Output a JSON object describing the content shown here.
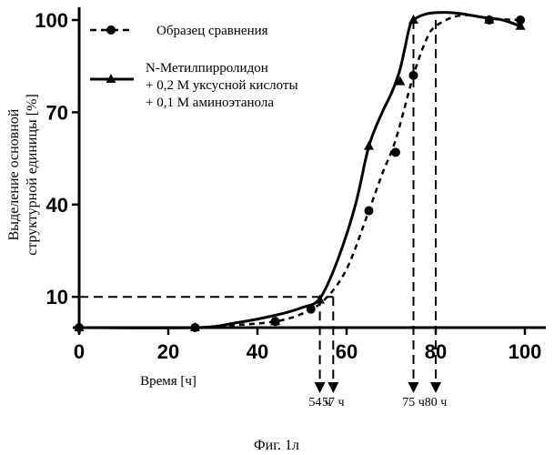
{
  "chart_data": {
    "type": "line",
    "title": "",
    "xlabel": "Время [ч]",
    "ylabel": [
      "Выделение основной",
      "структурной единицы [%]"
    ],
    "xlim": [
      0,
      100
    ],
    "ylim": [
      0,
      100
    ],
    "grid": false,
    "legend_position": "top-left",
    "x_ticks": [
      0,
      20,
      40,
      60,
      80,
      100
    ],
    "x_tick_labels": [
      "0",
      "20",
      "40",
      "60",
      "80",
      "100"
    ],
    "y_ticks": [
      10,
      40,
      70,
      100
    ],
    "y_tick_labels": [
      "10",
      "40",
      "70",
      "100"
    ],
    "series": [
      {
        "name": "Образец сравнения",
        "style": "dashed",
        "marker": "circle",
        "x": [
          0,
          26,
          44,
          52,
          65,
          71,
          75,
          92,
          99
        ],
        "y": [
          0,
          0,
          2,
          6,
          38,
          57,
          82,
          100,
          100
        ]
      },
      {
        "name_lines": [
          "N-Метилпирролидон",
          "+ 0,2 М уксусной кислоты",
          "+ 0,1 М аминоэтанола"
        ],
        "style": "solid",
        "marker": "triangle",
        "x": [
          0,
          26,
          44,
          54,
          65,
          72,
          75,
          92,
          99
        ],
        "y": [
          0,
          0,
          2,
          9,
          59,
          80,
          100,
          100,
          98
        ]
      }
    ],
    "curves": [
      {
        "series": 0,
        "x": [
          0,
          26,
          35,
          44,
          50,
          55,
          60,
          65,
          68,
          71,
          75,
          78,
          80,
          84,
          88,
          92,
          99
        ],
        "y": [
          0,
          0,
          0.8,
          2,
          4.5,
          9,
          19,
          38,
          50,
          61,
          82,
          94,
          98,
          101,
          101.5,
          100.5,
          100
        ]
      },
      {
        "series": 1,
        "x": [
          0,
          26,
          35,
          44,
          50,
          54,
          58,
          62,
          65,
          68,
          70,
          72,
          74,
          75,
          78,
          82,
          86,
          90,
          95,
          99
        ],
        "y": [
          0,
          0,
          1.5,
          4,
          6.5,
          9.5,
          22,
          40,
          59,
          70,
          76,
          84,
          97,
          100,
          102,
          102.5,
          102,
          101,
          100,
          98
        ]
      }
    ],
    "reference": {
      "y": 10,
      "times": [
        54,
        57,
        75,
        80
      ],
      "labels": [
        "54 ч",
        "57 ч",
        "75 ч",
        "80 ч"
      ],
      "top_y": [
        10,
        10,
        100,
        100
      ]
    },
    "caption": "Фиг. 1л"
  }
}
